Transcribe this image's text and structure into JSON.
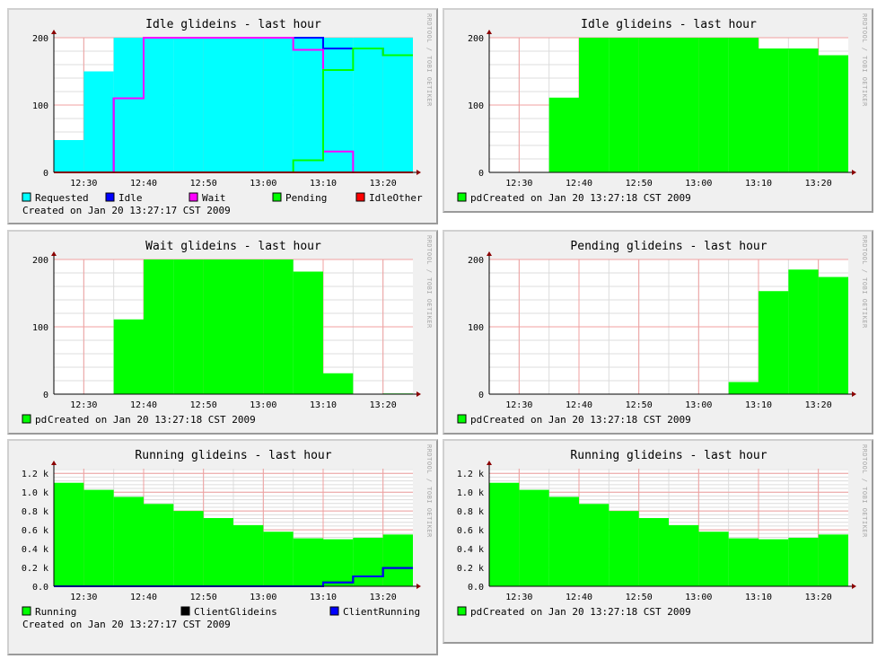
{
  "watermark": "RRDTOOL / TOBI OETIKER",
  "chart_data": [
    {
      "type": "area",
      "title": "Idle glideins - last hour",
      "x": [
        "12:25",
        "12:30",
        "12:35",
        "12:40",
        "12:45",
        "12:50",
        "12:55",
        "13:00",
        "13:05",
        "13:10",
        "13:15",
        "13:20"
      ],
      "x_ticks": [
        "12:30",
        "12:40",
        "12:50",
        "13:00",
        "13:10",
        "13:20"
      ],
      "y_ticks": [
        "0",
        "100",
        "200"
      ],
      "ylim": [
        0,
        200
      ],
      "grid": true,
      "series": [
        {
          "name": "Requested",
          "color": "#00ffff",
          "render": "area",
          "values": [
            48,
            150,
            200,
            200,
            200,
            200,
            200,
            200,
            200,
            200,
            200,
            200
          ]
        },
        {
          "name": "Idle",
          "color": "#0000ff",
          "render": "step",
          "values": [
            0,
            0,
            110,
            200,
            200,
            200,
            200,
            200,
            200,
            184,
            184,
            174
          ]
        },
        {
          "name": "Wait",
          "color": "#ff00ff",
          "render": "step",
          "values": [
            0,
            0,
            110,
            200,
            200,
            200,
            200,
            200,
            182,
            31,
            0,
            0
          ]
        },
        {
          "name": "Pending",
          "color": "#00ff00",
          "render": "step",
          "values": [
            0,
            0,
            0,
            0,
            0,
            0,
            0,
            0,
            18,
            152,
            184,
            174
          ]
        },
        {
          "name": "IdleOther",
          "color": "#ff0000",
          "render": "step",
          "values": [
            0,
            0,
            0,
            0,
            0,
            0,
            0,
            0,
            0,
            0,
            0,
            0
          ]
        }
      ],
      "footer": "Created on Jan 20 13:27:17 CST 2009"
    },
    {
      "type": "area",
      "title": "Idle glideins - last hour",
      "x": [
        "12:25",
        "12:30",
        "12:35",
        "12:40",
        "12:45",
        "12:50",
        "12:55",
        "13:00",
        "13:05",
        "13:10",
        "13:15",
        "13:20"
      ],
      "x_ticks": [
        "12:30",
        "12:40",
        "12:50",
        "13:00",
        "13:10",
        "13:20"
      ],
      "y_ticks": [
        "0",
        "100",
        "200"
      ],
      "ylim": [
        0,
        200
      ],
      "grid": true,
      "series": [
        {
          "name": "pd",
          "color": "#00ff00",
          "render": "area",
          "values": [
            0,
            0,
            111,
            200,
            200,
            200,
            200,
            200,
            200,
            184,
            184,
            174
          ]
        }
      ],
      "footer": "Created on Jan 20 13:27:18 CST 2009"
    },
    {
      "type": "area",
      "title": "Wait glideins - last hour",
      "x": [
        "12:25",
        "12:30",
        "12:35",
        "12:40",
        "12:45",
        "12:50",
        "12:55",
        "13:00",
        "13:05",
        "13:10",
        "13:15",
        "13:20"
      ],
      "x_ticks": [
        "12:30",
        "12:40",
        "12:50",
        "13:00",
        "13:10",
        "13:20"
      ],
      "y_ticks": [
        "0",
        "100",
        "200"
      ],
      "ylim": [
        0,
        200
      ],
      "grid": true,
      "series": [
        {
          "name": "pd",
          "color": "#00ff00",
          "render": "area",
          "values": [
            0,
            0,
            111,
            200,
            200,
            200,
            200,
            200,
            182,
            31,
            0,
            1
          ]
        }
      ],
      "footer": "Created on Jan 20 13:27:18 CST 2009"
    },
    {
      "type": "area",
      "title": "Pending glideins - last hour",
      "x": [
        "12:25",
        "12:30",
        "12:35",
        "12:40",
        "12:45",
        "12:50",
        "12:55",
        "13:00",
        "13:05",
        "13:10",
        "13:15",
        "13:20"
      ],
      "x_ticks": [
        "12:30",
        "12:40",
        "12:50",
        "13:00",
        "13:10",
        "13:20"
      ],
      "y_ticks": [
        "0",
        "100",
        "200"
      ],
      "ylim": [
        0,
        200
      ],
      "grid": true,
      "series": [
        {
          "name": "pd",
          "color": "#00ff00",
          "render": "area",
          "values": [
            0,
            0,
            0,
            0,
            0,
            0,
            0,
            0,
            18,
            153,
            185,
            174
          ]
        }
      ],
      "footer": "Created on Jan 20 13:27:18 CST 2009"
    },
    {
      "type": "area",
      "title": "Running glideins - last hour",
      "x": [
        "12:25",
        "12:30",
        "12:35",
        "12:40",
        "12:45",
        "12:50",
        "12:55",
        "13:00",
        "13:05",
        "13:10",
        "13:15",
        "13:20"
      ],
      "x_ticks": [
        "12:30",
        "12:40",
        "12:50",
        "13:00",
        "13:10",
        "13:20"
      ],
      "y_ticks": [
        "0.0",
        "0.2 k",
        "0.4 k",
        "0.6 k",
        "0.8 k",
        "1.0 k",
        "1.2 k"
      ],
      "ylim": [
        0,
        1250
      ],
      "grid": true,
      "series": [
        {
          "name": "Running",
          "color": "#00ff00",
          "render": "area",
          "values": [
            1100,
            1025,
            950,
            875,
            800,
            725,
            650,
            580,
            510,
            500,
            515,
            550
          ]
        },
        {
          "name": "ClientGlideins",
          "color": "#000000",
          "render": "step",
          "values": [
            0,
            0,
            0,
            0,
            0,
            0,
            0,
            0,
            0,
            40,
            105,
            195
          ]
        },
        {
          "name": "ClientRunning",
          "color": "#0000ff",
          "render": "step",
          "values": [
            0,
            0,
            0,
            0,
            0,
            0,
            0,
            0,
            0,
            40,
            105,
            195
          ]
        }
      ],
      "footer": "Created on Jan 20 13:27:17 CST 2009"
    },
    {
      "type": "area",
      "title": "Running glideins - last hour",
      "x": [
        "12:25",
        "12:30",
        "12:35",
        "12:40",
        "12:45",
        "12:50",
        "12:55",
        "13:00",
        "13:05",
        "13:10",
        "13:15",
        "13:20"
      ],
      "x_ticks": [
        "12:30",
        "12:40",
        "12:50",
        "13:00",
        "13:10",
        "13:20"
      ],
      "y_ticks": [
        "0.0",
        "0.2 k",
        "0.4 k",
        "0.6 k",
        "0.8 k",
        "1.0 k",
        "1.2 k"
      ],
      "ylim": [
        0,
        1250
      ],
      "grid": true,
      "series": [
        {
          "name": "pd",
          "color": "#00ff00",
          "render": "area",
          "values": [
            1100,
            1025,
            950,
            875,
            800,
            725,
            650,
            580,
            510,
            500,
            515,
            550
          ]
        }
      ],
      "footer": "Created on Jan 20 13:27:18 CST 2009"
    }
  ]
}
